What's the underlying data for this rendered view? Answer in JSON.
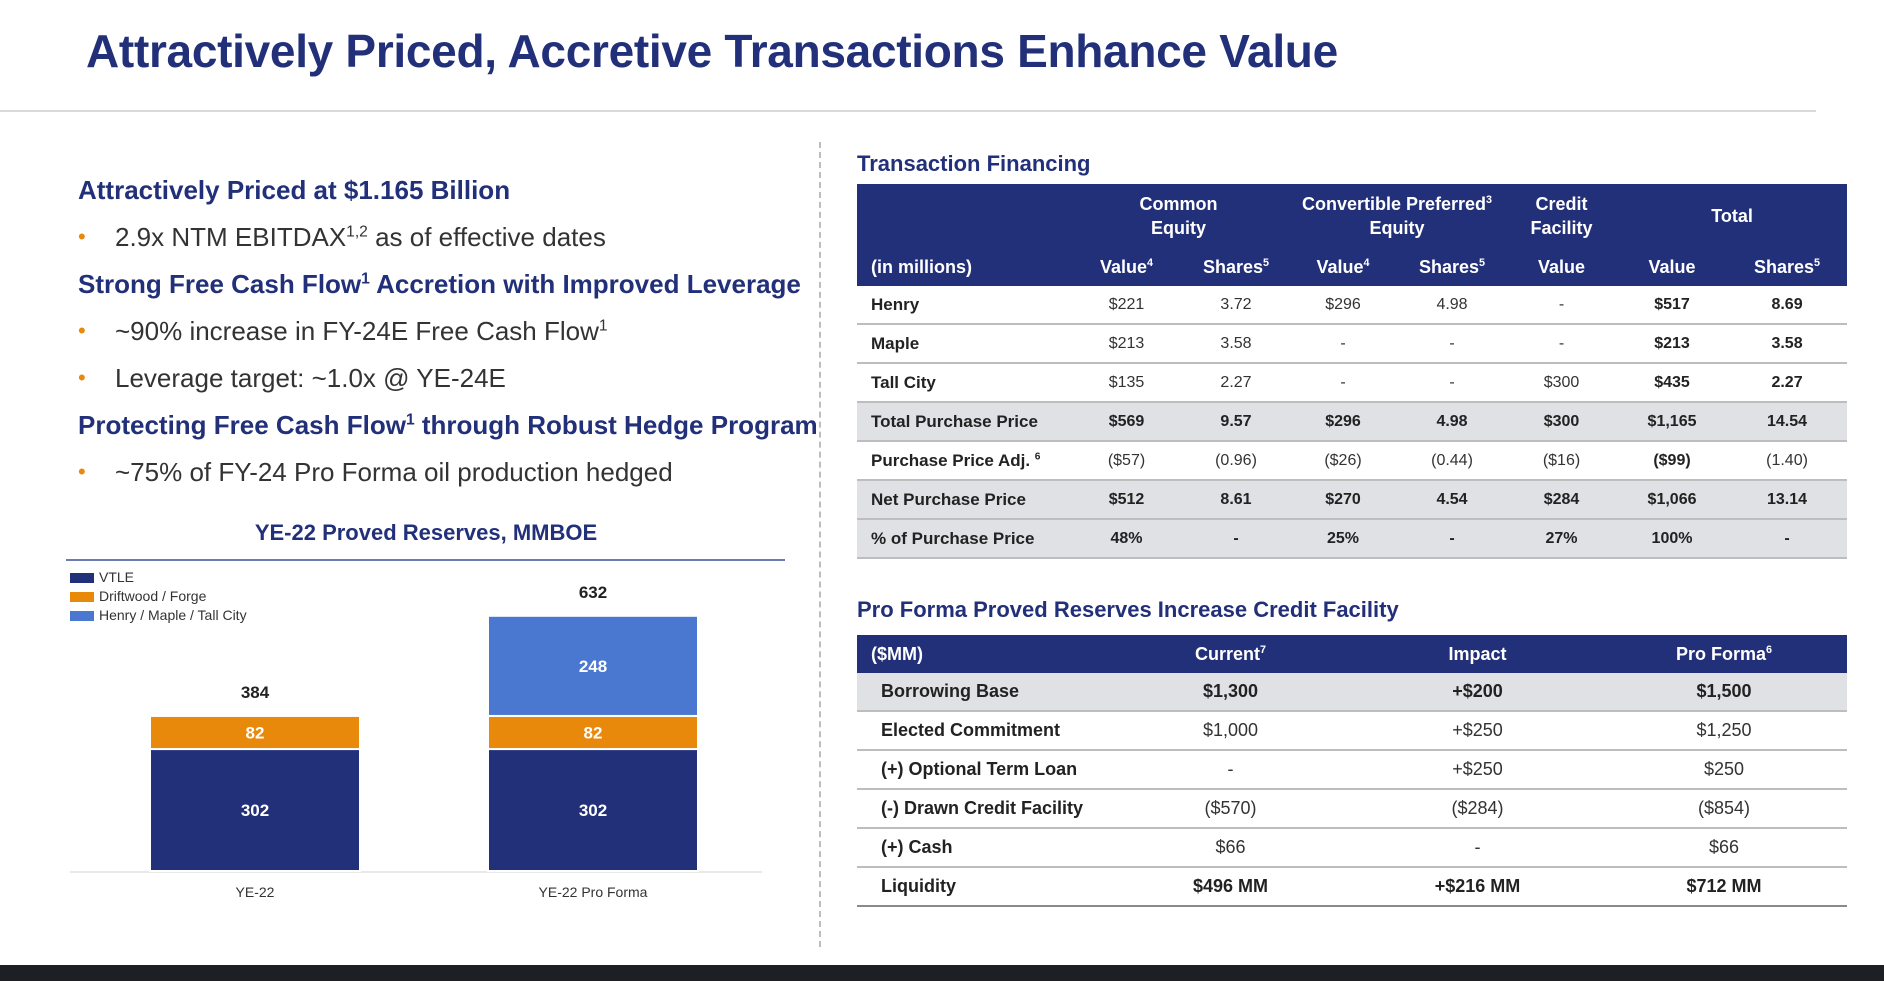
{
  "title": "Attractively Priced, Accretive Transactions Enhance Value",
  "bullets": {
    "h1": "Attractively Priced at $1.165 Billion",
    "i1_text": "2.9x NTM EBITDAX",
    "i1_sup": "1,2",
    "i1_tail": " as of effective dates",
    "h2_text": "Strong Free Cash Flow",
    "h2_sup": "1",
    "h2_tail": " Accretion with Improved Leverage",
    "i2_text": "~90% increase in FY-24E Free Cash Flow",
    "i2_sup": "1",
    "i3": "Leverage target: ~1.0x @ YE-24E",
    "h3_text": "Protecting Free Cash Flow",
    "h3_sup": "1",
    "h3_tail": " through Robust Hedge Program",
    "i4": "~75% of FY-24 Pro Forma oil production hedged",
    "dot": "•"
  },
  "chart_data": {
    "type": "bar",
    "stacked": true,
    "title": "YE-22 Proved Reserves, MMBOE",
    "categories": [
      "YE-22",
      "YE-22 Pro Forma"
    ],
    "series": [
      {
        "name": "VTLE",
        "values": [
          302,
          302
        ],
        "color": "#22307a"
      },
      {
        "name": "Driftwood / Forge",
        "values": [
          82,
          82
        ],
        "color": "#e8890c"
      },
      {
        "name": "Henry / Maple / Tall City",
        "values": [
          null,
          248
        ],
        "color": "#4a78d0"
      }
    ],
    "totals": [
      384,
      632
    ],
    "total_labels": [
      "384",
      "632"
    ],
    "legend_position": "top-left",
    "grid": false
  },
  "financing": {
    "title": "Transaction Financing",
    "group_headers": [
      "Common Equity",
      "Convertible Preferred",
      "Credit Facility",
      "Total"
    ],
    "group_header_line1": [
      "Common",
      "Convertible Preferred",
      "Credit"
    ],
    "group_header_line2": [
      "Equity",
      "Equity",
      "Facility"
    ],
    "conv_sup": "3",
    "unit_label": "(in millions)",
    "sub_headers": [
      "Value",
      "Shares",
      "Value",
      "Shares",
      "Value",
      "Value",
      "Shares"
    ],
    "sub_sups": [
      "4",
      "5",
      "4",
      "5",
      "",
      "",
      "5"
    ],
    "rows": [
      {
        "label": "Henry",
        "cells": [
          "$221",
          "3.72",
          "$296",
          "4.98",
          "-",
          "$517",
          "8.69"
        ]
      },
      {
        "label": "Maple",
        "cells": [
          "$213",
          "3.58",
          "-",
          "-",
          "-",
          "$213",
          "3.58"
        ]
      },
      {
        "label": "Tall City",
        "cells": [
          "$135",
          "2.27",
          "-",
          "-",
          "$300",
          "$435",
          "2.27"
        ]
      },
      {
        "label": "Total Purchase Price",
        "cells": [
          "$569",
          "9.57",
          "$296",
          "4.98",
          "$300",
          "$1,165",
          "14.54"
        ]
      },
      {
        "label": "Purchase Price Adj.",
        "label_sup": "6",
        "cells": [
          "($57)",
          "(0.96)",
          "($26)",
          "(0.44)",
          "($16)",
          "($99)",
          "(1.40)"
        ]
      },
      {
        "label": "Net Purchase Price",
        "cells": [
          "$512",
          "8.61",
          "$270",
          "4.54",
          "$284",
          "$1,066",
          "13.14"
        ]
      },
      {
        "label": "% of Purchase Price",
        "cells": [
          "48%",
          "-",
          "25%",
          "-",
          "27%",
          "100%",
          "-"
        ]
      }
    ]
  },
  "proforma": {
    "title": "Pro Forma Proved Reserves Increase Credit Facility",
    "headers": [
      "($MM)",
      "Current",
      "Impact",
      "Pro Forma"
    ],
    "header_sups": [
      "",
      "7",
      "",
      "6"
    ],
    "rows": [
      {
        "label": "Borrowing Base",
        "cells": [
          "$1,300",
          "+$200",
          "$1,500"
        ]
      },
      {
        "label": "Elected Commitment",
        "cells": [
          "$1,000",
          "+$250",
          "$1,250"
        ]
      },
      {
        "label": "(+) Optional Term Loan",
        "cells": [
          "-",
          "+$250",
          "$250"
        ]
      },
      {
        "label": "(-) Drawn Credit Facility",
        "cells": [
          "($570)",
          "($284)",
          "($854)"
        ]
      },
      {
        "label": "(+) Cash",
        "cells": [
          "$66",
          "-",
          "$66"
        ]
      },
      {
        "label": "Liquidity",
        "cells": [
          "$496 MM",
          "+$216 MM",
          "$712 MM"
        ]
      }
    ]
  }
}
